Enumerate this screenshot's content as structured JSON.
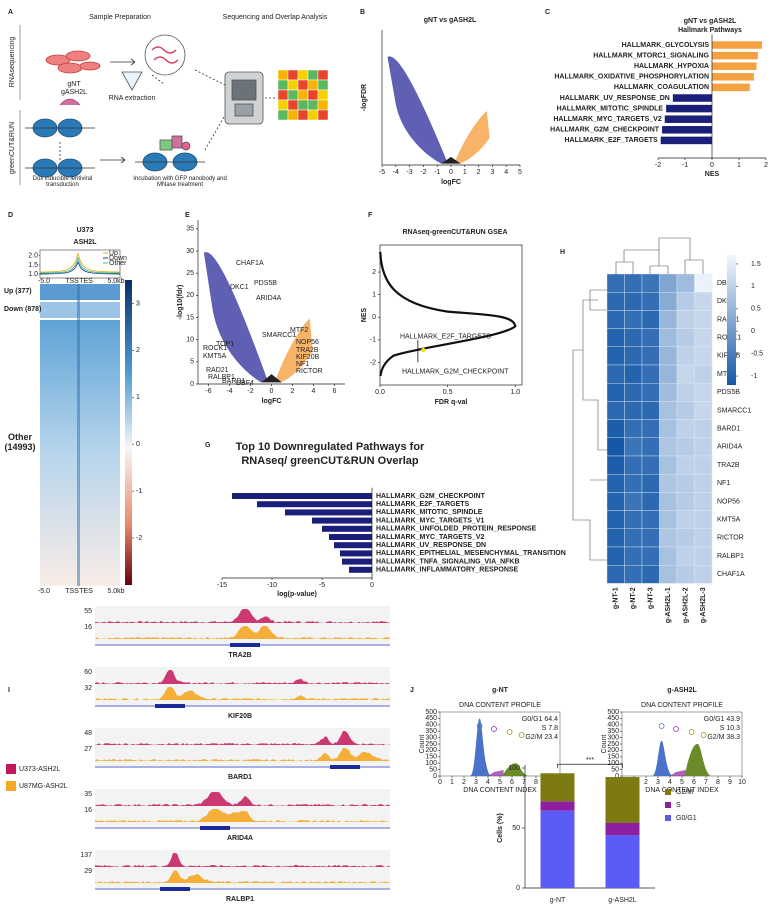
{
  "panels": {
    "letters": [
      "A",
      "B",
      "C",
      "D",
      "E",
      "F",
      "G",
      "H",
      "I",
      "J"
    ],
    "A": {
      "sample_preparation": "Sample Preparation",
      "sequencing": "Sequencing  and Overlap Analysis",
      "row1": "RNAsequencing",
      "row2": "greenCUT&RUN",
      "gnt": "gNT",
      "gash2l": "gASH2L",
      "rna_extraction": "RNA extraction",
      "transduction": "Dox inducible lentiviral transduction",
      "incubation": "Incubation with GFP nanobody and MNase treatment"
    },
    "D": {
      "title1": "U373",
      "title2": "ASH2L",
      "legend": [
        "Up",
        "Down",
        "Other"
      ],
      "groups": [
        "Up (377)",
        "Down (878)",
        "Other (14993)"
      ],
      "x_labels": [
        "-5.0",
        "TSS",
        "TES",
        "5.0kb"
      ],
      "profile_ylim": [
        0.8,
        2.3
      ],
      "profile_yticks": [
        {
          "value": 1,
          "label": "1.0"
        },
        {
          "value": 1.5,
          "label": "1.5"
        },
        {
          "value": 2,
          "label": "2.0"
        }
      ],
      "colorbar_lim": [
        -3,
        3.5
      ],
      "colorbar_ticks": [
        3,
        2,
        1,
        0,
        -1,
        -2
      ]
    },
    "I": {
      "legend": [
        "U373-ASH2L",
        "U87MG-ASH2L"
      ],
      "genes": [
        {
          "name": "TRA2B",
          "scales": [
            55,
            16
          ]
        },
        {
          "name": "KIF20B",
          "scales": [
            60,
            32
          ]
        },
        {
          "name": "BARD1",
          "scales": [
            48,
            27
          ]
        },
        {
          "name": "ARID4A",
          "scales": [
            35,
            16
          ]
        },
        {
          "name": "RALBP1",
          "scales": [
            137,
            29
          ]
        }
      ]
    },
    "J": {
      "samples": [
        {
          "name": "g-NT",
          "stats": [
            "G0/G1 64.4",
            "S 7.8",
            "G2/M 23.4"
          ]
        },
        {
          "name": "g-ASH2L",
          "stats": [
            "G0/G1 43.9",
            "S 10.3",
            "G2/M 38.3"
          ]
        }
      ],
      "plot_title": "DNA CONTENT PROFILE",
      "ylabel": "Count",
      "xlabel": "DNA CONTENT INDEX",
      "xlim": [
        0,
        10
      ],
      "xticks": [
        0,
        1,
        2,
        3,
        4,
        5,
        6,
        7,
        8,
        9,
        10
      ],
      "ylim": [
        0,
        500
      ],
      "yticks": [
        0,
        50,
        100,
        150,
        200,
        250,
        300,
        350,
        400,
        450,
        500
      ],
      "significance": "***"
    }
  },
  "chart_data": [
    {
      "type": "barh",
      "title": "gNT vs gASH2L",
      "subtitle": "Hallmark Pathways",
      "categories": [
        "HALLMARK_GLYCOLYSIS",
        "HALLMARK_MTORC1_SIGNALING",
        "HALLMARK_HYPOXIA",
        "HALLMARK_OXIDATIVE_PHOSPHORYLATION",
        "HALLMARK_COAGULATION",
        "HALLMARK_UV_RESPONSE_DN",
        "HALLMARK_MITOTIC_SPINDLE",
        "HALLMARK_MYC_TARGETS_V2",
        "HALLMARK_G2M_CHECKPOINT",
        "HALLMARK_E2F_TARGETS"
      ],
      "values": [
        1.85,
        1.7,
        1.65,
        1.55,
        1.4,
        -1.45,
        -1.7,
        -1.75,
        -1.85,
        -1.9
      ],
      "colors": {
        "positive": "#f5a142",
        "negative": "#1a1f7a"
      },
      "xlim": [
        -2,
        2
      ],
      "xticks": [
        -2,
        -1,
        0,
        1,
        2
      ],
      "xlabel": "NES"
    },
    {
      "type": "barh",
      "title": "Top 10 Downregulated Pathways for RNAseq/ greenCUT&RUN Overlap",
      "categories": [
        "HALLMARK_G2M_CHECKPOINT",
        "HALLMARK_E2F_TARGETS",
        "HALLMARK_MITOTIC_SPINDLE",
        "HALLMARK_MYC_TARGETS_V1",
        "HALLMARK_UNFOLDED_PROTEIN_RESPONSE",
        "HALLMARK_MYC_TARGETS_V2",
        "HALLMARK_UV_RESPONSE_DN",
        "HALLMARK_EPITHELIAL_MESENCHYMAL_TRANSITION",
        "HALLMARK_TNFA_SIGNALING_VIA_NFKB",
        "HALLMARK_INFLAMMATORY_RESPONSE"
      ],
      "values": [
        -14,
        -11.5,
        -8.7,
        -6,
        -5,
        -4.3,
        -3.8,
        -3.2,
        -3,
        -2.3
      ],
      "colors": {
        "positive": "#1a1f7a",
        "negative": "#1a1f7a"
      },
      "xlim": [
        -15,
        0
      ],
      "xticks": [
        -15,
        -10,
        -5,
        0
      ],
      "xlabel": "log(p-value)"
    },
    {
      "type": "heatmap",
      "rows": [
        "DBF4",
        "DKC1",
        "RAD21",
        "ROCK1",
        "KIF20B",
        "MTF2",
        "PDS5B",
        "SMARCC1",
        "BARD1",
        "ARID4A",
        "TRA2B",
        "NF1",
        "NOP56",
        "KMT5A",
        "RICTOR",
        "RALBP1",
        "CHAF1A"
      ],
      "columns": [
        "g-NT-1",
        "g-NT-2",
        "g-NT-3",
        "g-ASH2L-1",
        "g-ASH2L-2",
        "g-ASH2L-3"
      ],
      "values": [
        [
          -0.8,
          -0.8,
          -0.7,
          0.2,
          0.6,
          1.6
        ],
        [
          -0.9,
          -0.9,
          -0.8,
          0.3,
          0.9,
          1.1
        ],
        [
          -0.9,
          -0.8,
          -0.9,
          0.5,
          1.0,
          1.1
        ],
        [
          -1.0,
          -0.9,
          -0.8,
          0.6,
          0.9,
          1.1
        ],
        [
          -1.0,
          -0.9,
          -0.8,
          0.5,
          1.0,
          1.1
        ],
        [
          -0.9,
          -1.0,
          -0.8,
          0.5,
          1.1,
          1.0
        ],
        [
          -1.0,
          -0.9,
          -0.8,
          0.6,
          1.0,
          1.1
        ],
        [
          -0.9,
          -0.9,
          -0.9,
          0.7,
          0.9,
          1.1
        ],
        [
          -1.1,
          -0.8,
          -0.8,
          0.7,
          1.0,
          1.0
        ],
        [
          -1.2,
          -0.7,
          -0.8,
          0.8,
          0.9,
          1.0
        ],
        [
          -1.1,
          -0.8,
          -0.8,
          0.7,
          1.0,
          1.0
        ],
        [
          -1.0,
          -0.8,
          -0.9,
          0.8,
          0.9,
          1.0
        ],
        [
          -1.0,
          -0.7,
          -0.9,
          0.7,
          0.9,
          1.0
        ],
        [
          -1.0,
          -0.8,
          -0.8,
          0.7,
          1.0,
          1.0
        ],
        [
          -1.0,
          -0.8,
          -0.8,
          0.8,
          0.9,
          1.0
        ],
        [
          -1.0,
          -0.8,
          -0.8,
          0.7,
          1.0,
          1.0
        ],
        [
          -0.9,
          -0.8,
          -0.9,
          0.7,
          0.9,
          1.0
        ]
      ],
      "clim": [
        -1.2,
        1.7
      ],
      "cticks": [
        1.5,
        1,
        0.5,
        0,
        -0.5,
        -1
      ],
      "colors": {
        "low": "#1558a8",
        "high": "#f4f8fd"
      }
    },
    {
      "type": "stacked_bar",
      "categories": [
        "g-NT",
        "g-ASH2L"
      ],
      "series": [
        {
          "name": "G0/G1",
          "color": "#5b5bf5",
          "values": [
            64.4,
            43.9
          ]
        },
        {
          "name": "S",
          "color": "#8e1fa0",
          "values": [
            7.8,
            10.3
          ]
        },
        {
          "name": "G2/M",
          "color": "#7d7a12",
          "values": [
            23.4,
            38.3
          ]
        }
      ],
      "ylim": [
        0,
        100
      ],
      "yticks": [
        0,
        50,
        100
      ],
      "ylabel": "Cells (%)"
    },
    {
      "type": "volcano",
      "title": "gNT vs gASH2L",
      "xlabel": "logFC",
      "ylabel": "-logFDR",
      "xlim": [
        -5,
        5
      ],
      "xticks": [
        -5,
        -4,
        -3,
        -2,
        -1,
        0,
        1,
        2,
        3,
        4,
        5
      ],
      "colors": {
        "down": "#2a2a9a",
        "up": "#f5a142"
      }
    },
    {
      "type": "volcano",
      "xlabel": "logFC",
      "ylabel": "-log10(fdr)",
      "xlim": [
        -7,
        7
      ],
      "xticks": [
        -6,
        -4,
        -2,
        0,
        2,
        4,
        6
      ],
      "ylim": [
        0,
        37
      ],
      "yticks": [
        0,
        5,
        10,
        15,
        20,
        25,
        30,
        35
      ],
      "colors": {
        "down": "#2a2a9a",
        "up": "#f5a142"
      },
      "annotations": [
        "CHAF1A",
        "DKC1",
        "PDS5B",
        "ARID4A",
        "SMARCC1",
        "MTF2",
        "NOP56",
        "TRA2B",
        "KIF20B",
        "NF1",
        "RICTOR",
        "ROCK1",
        "TOP1",
        "KMT5A",
        "RAD21",
        "RALBP1",
        "BARD1",
        "DBF4"
      ]
    },
    {
      "type": "gsea",
      "title": "RNAseq-greenCUT&RUN GSEA",
      "xlabel": "FDR q-val",
      "ylabel": "NES",
      "xlim": [
        0,
        1.05
      ],
      "xticks": [
        {
          "value": 0,
          "label": "0.0"
        },
        {
          "value": 0.5,
          "label": "0.5"
        },
        {
          "value": 1,
          "label": "1.0"
        }
      ],
      "ylim": [
        -3,
        3.2
      ],
      "yticks": [
        -2,
        -1,
        0,
        1,
        2
      ],
      "annotations": [
        "HALLMARK_E2F_TARGETS",
        "HALLMARK_G2M_CHECKPOINT"
      ]
    }
  ]
}
